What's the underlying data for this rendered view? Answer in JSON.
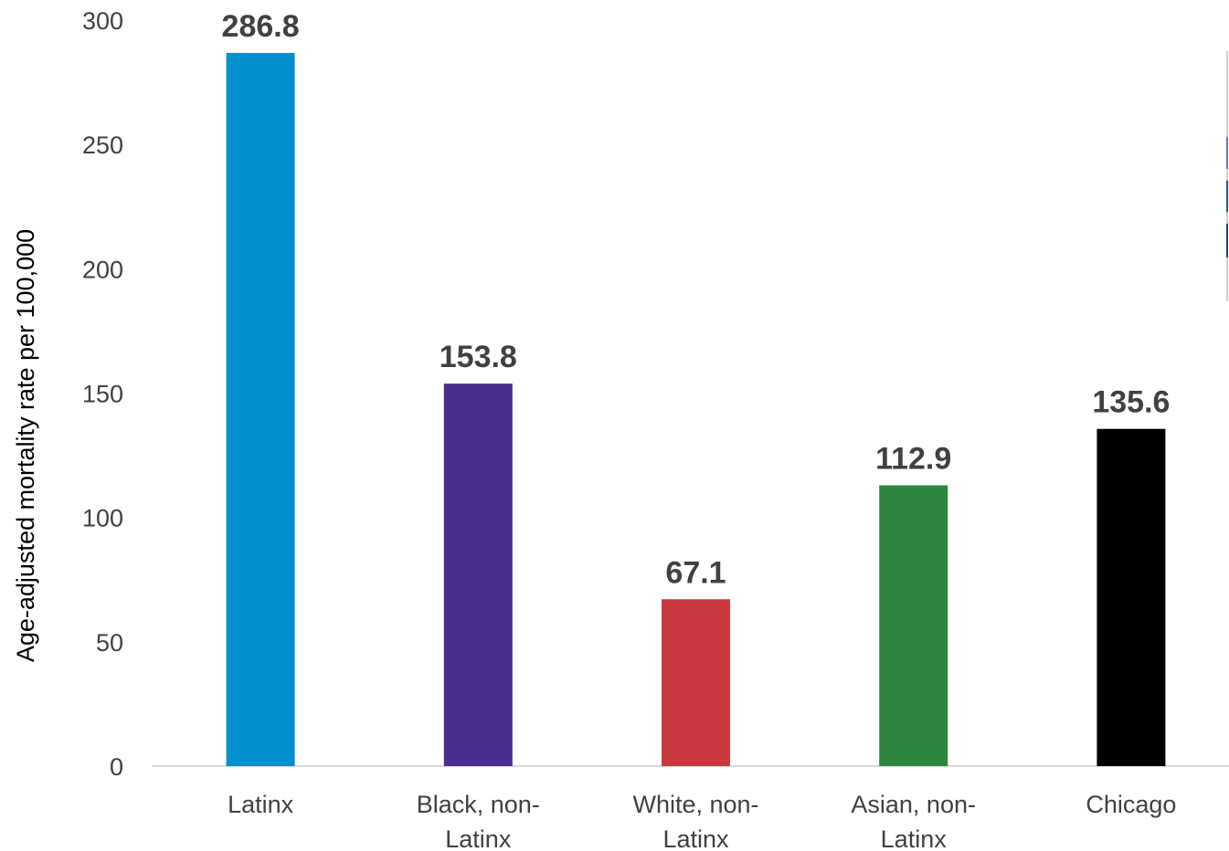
{
  "chart_data": {
    "type": "bar",
    "categories": [
      [
        "Latinx"
      ],
      [
        "Black, non-",
        "Latinx"
      ],
      [
        "White, non-",
        "Latinx"
      ],
      [
        "Asian, non-",
        "Latinx"
      ],
      [
        "Chicago"
      ]
    ],
    "values": [
      286.8,
      153.8,
      67.1,
      112.9,
      135.6
    ],
    "value_labels": [
      "286.8",
      "153.8",
      "67.1",
      "112.9",
      "135.6"
    ],
    "bar_colors": [
      "#0090d0",
      "#4b2d8e",
      "#c9373f",
      "#2e8540",
      "#000000"
    ],
    "title": "",
    "xlabel": "",
    "ylabel": "Age-adjusted mortality rate per 100,000",
    "ylim": [
      0,
      300
    ],
    "yticks": [
      0,
      50,
      100,
      150,
      200,
      250,
      300
    ],
    "ytick_labels": [
      "0",
      "50",
      "100",
      "150",
      "200",
      "250",
      "300"
    ],
    "grid": false
  }
}
